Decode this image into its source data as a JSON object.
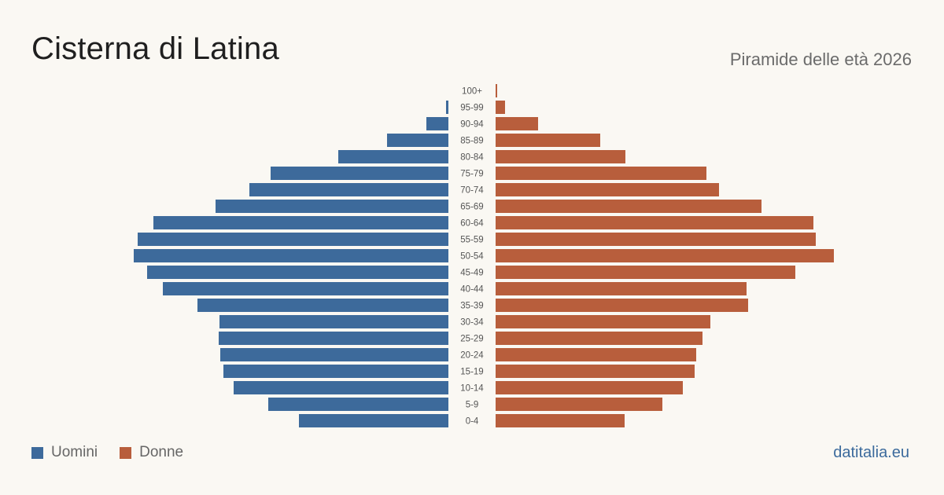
{
  "header": {
    "title": "Cisterna di Latina",
    "subtitle": "Piramide delle età 2026"
  },
  "legend": {
    "men_label": "Uomini",
    "women_label": "Donne"
  },
  "footer": {
    "source": "datitalia.eu"
  },
  "colors": {
    "men": "#3d6a9b",
    "women": "#b85e3c",
    "background": "#faf8f3",
    "age_label": "#555555"
  },
  "chart_data": {
    "type": "bar",
    "orientation": "horizontal-pyramid",
    "categories": [
      "100+",
      "95-99",
      "90-94",
      "85-89",
      "80-84",
      "75-79",
      "70-74",
      "65-69",
      "60-64",
      "55-59",
      "50-54",
      "45-49",
      "40-44",
      "35-39",
      "30-34",
      "25-29",
      "20-24",
      "15-19",
      "10-14",
      "5-9",
      "0-4"
    ],
    "series": [
      {
        "name": "Uomini",
        "side": "left",
        "values": [
          0,
          3,
          28,
          78,
          140,
          226,
          253,
          296,
          375,
          395,
          400,
          383,
          363,
          319,
          291,
          292,
          290,
          286,
          273,
          229,
          190
        ]
      },
      {
        "name": "Donne",
        "side": "right",
        "values": [
          2,
          12,
          54,
          133,
          165,
          268,
          284,
          338,
          404,
          407,
          430,
          381,
          319,
          321,
          273,
          263,
          255,
          253,
          238,
          212,
          164
        ]
      }
    ],
    "xlim": [
      0,
      430
    ],
    "axis_labels_visible": false,
    "grid": false,
    "legend_position": "bottom-left"
  }
}
